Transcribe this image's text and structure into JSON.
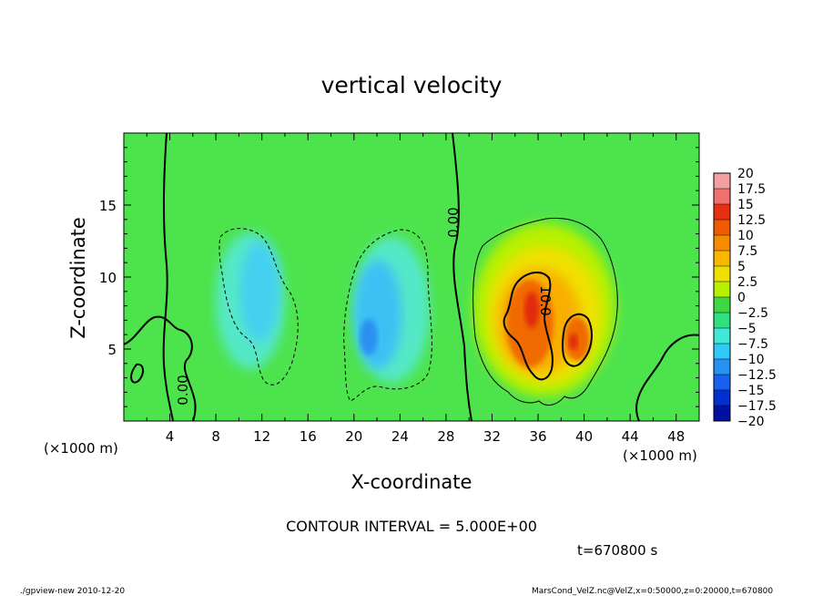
{
  "chart_data": {
    "type": "heatmap",
    "title": "vertical velocity",
    "xlabel": "X-coordinate",
    "ylabel": "Z-coordinate",
    "x_unit": "(×1000 m)",
    "y_unit": "(×1000 m)",
    "xlim": [
      0,
      50
    ],
    "ylim": [
      0,
      20
    ],
    "x_ticks": [
      "4",
      "8",
      "12",
      "16",
      "20",
      "24",
      "28",
      "32",
      "36",
      "40",
      "44",
      "48"
    ],
    "y_ticks": [
      "5",
      "10",
      "15"
    ],
    "colorbar_labels": [
      "20",
      "17.5",
      "15",
      "12.5",
      "10",
      "7.5",
      "5",
      "2.5",
      "0",
      "−2.5",
      "−5",
      "−7.5",
      "−10",
      "−12.5",
      "−15",
      "−17.5",
      "−20"
    ],
    "colorbar_colors": [
      "#f4a0a0",
      "#f07070",
      "#e83010",
      "#f05a00",
      "#f88a00",
      "#f8b800",
      "#f0e000",
      "#b8f000",
      "#40d840",
      "#30e080",
      "#40e8d8",
      "#30c8f8",
      "#2890f0",
      "#1860f0",
      "#0030d0",
      "#0010a0",
      "#6020c0"
    ],
    "contour_labels": [
      "0.00",
      "0.00",
      "10.0"
    ],
    "contour_interval": "CONTOUR INTERVAL = 5.000E+00",
    "time": "t=670800 s",
    "fields": [
      {
        "region": "downdraft-left",
        "center_x": 12,
        "center_z": 9,
        "min": -7
      },
      {
        "region": "downdraft-right",
        "center_x": 22,
        "center_z": 8,
        "min": -8
      },
      {
        "region": "updraft-left",
        "center_x": 35.5,
        "center_z": 8,
        "max": 14
      },
      {
        "region": "updraft-right",
        "center_x": 39,
        "center_z": 6,
        "max": 12
      }
    ]
  },
  "footer": {
    "left": "./gpview-new  2010-12-20",
    "right": "MarsCond_VelZ.nc@VelZ,x=0:50000,z=0:20000,t=670800"
  }
}
